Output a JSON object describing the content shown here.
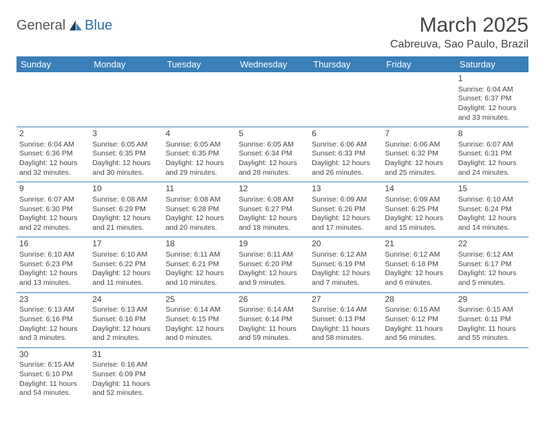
{
  "logo": {
    "general": "General",
    "blue": "Blue"
  },
  "title": "March 2025",
  "location": "Cabreuva, Sao Paulo, Brazil",
  "colors": {
    "header_bg": "#3a7fb8",
    "header_text": "#ffffff",
    "border": "#3a7fb8",
    "text": "#444444",
    "logo_gray": "#555555",
    "logo_blue": "#2f6fa7"
  },
  "weekdays": [
    "Sunday",
    "Monday",
    "Tuesday",
    "Wednesday",
    "Thursday",
    "Friday",
    "Saturday"
  ],
  "weeks": [
    [
      null,
      null,
      null,
      null,
      null,
      null,
      {
        "n": "1",
        "sunrise": "Sunrise: 6:04 AM",
        "sunset": "Sunset: 6:37 PM",
        "day1": "Daylight: 12 hours",
        "day2": "and 33 minutes."
      }
    ],
    [
      {
        "n": "2",
        "sunrise": "Sunrise: 6:04 AM",
        "sunset": "Sunset: 6:36 PM",
        "day1": "Daylight: 12 hours",
        "day2": "and 32 minutes."
      },
      {
        "n": "3",
        "sunrise": "Sunrise: 6:05 AM",
        "sunset": "Sunset: 6:35 PM",
        "day1": "Daylight: 12 hours",
        "day2": "and 30 minutes."
      },
      {
        "n": "4",
        "sunrise": "Sunrise: 6:05 AM",
        "sunset": "Sunset: 6:35 PM",
        "day1": "Daylight: 12 hours",
        "day2": "and 29 minutes."
      },
      {
        "n": "5",
        "sunrise": "Sunrise: 6:05 AM",
        "sunset": "Sunset: 6:34 PM",
        "day1": "Daylight: 12 hours",
        "day2": "and 28 minutes."
      },
      {
        "n": "6",
        "sunrise": "Sunrise: 6:06 AM",
        "sunset": "Sunset: 6:33 PM",
        "day1": "Daylight: 12 hours",
        "day2": "and 26 minutes."
      },
      {
        "n": "7",
        "sunrise": "Sunrise: 6:06 AM",
        "sunset": "Sunset: 6:32 PM",
        "day1": "Daylight: 12 hours",
        "day2": "and 25 minutes."
      },
      {
        "n": "8",
        "sunrise": "Sunrise: 6:07 AM",
        "sunset": "Sunset: 6:31 PM",
        "day1": "Daylight: 12 hours",
        "day2": "and 24 minutes."
      }
    ],
    [
      {
        "n": "9",
        "sunrise": "Sunrise: 6:07 AM",
        "sunset": "Sunset: 6:30 PM",
        "day1": "Daylight: 12 hours",
        "day2": "and 22 minutes."
      },
      {
        "n": "10",
        "sunrise": "Sunrise: 6:08 AM",
        "sunset": "Sunset: 6:29 PM",
        "day1": "Daylight: 12 hours",
        "day2": "and 21 minutes."
      },
      {
        "n": "11",
        "sunrise": "Sunrise: 6:08 AM",
        "sunset": "Sunset: 6:28 PM",
        "day1": "Daylight: 12 hours",
        "day2": "and 20 minutes."
      },
      {
        "n": "12",
        "sunrise": "Sunrise: 6:08 AM",
        "sunset": "Sunset: 6:27 PM",
        "day1": "Daylight: 12 hours",
        "day2": "and 18 minutes."
      },
      {
        "n": "13",
        "sunrise": "Sunrise: 6:09 AM",
        "sunset": "Sunset: 6:26 PM",
        "day1": "Daylight: 12 hours",
        "day2": "and 17 minutes."
      },
      {
        "n": "14",
        "sunrise": "Sunrise: 6:09 AM",
        "sunset": "Sunset: 6:25 PM",
        "day1": "Daylight: 12 hours",
        "day2": "and 15 minutes."
      },
      {
        "n": "15",
        "sunrise": "Sunrise: 6:10 AM",
        "sunset": "Sunset: 6:24 PM",
        "day1": "Daylight: 12 hours",
        "day2": "and 14 minutes."
      }
    ],
    [
      {
        "n": "16",
        "sunrise": "Sunrise: 6:10 AM",
        "sunset": "Sunset: 6:23 PM",
        "day1": "Daylight: 12 hours",
        "day2": "and 13 minutes."
      },
      {
        "n": "17",
        "sunrise": "Sunrise: 6:10 AM",
        "sunset": "Sunset: 6:22 PM",
        "day1": "Daylight: 12 hours",
        "day2": "and 11 minutes."
      },
      {
        "n": "18",
        "sunrise": "Sunrise: 6:11 AM",
        "sunset": "Sunset: 6:21 PM",
        "day1": "Daylight: 12 hours",
        "day2": "and 10 minutes."
      },
      {
        "n": "19",
        "sunrise": "Sunrise: 6:11 AM",
        "sunset": "Sunset: 6:20 PM",
        "day1": "Daylight: 12 hours",
        "day2": "and 9 minutes."
      },
      {
        "n": "20",
        "sunrise": "Sunrise: 6:12 AM",
        "sunset": "Sunset: 6:19 PM",
        "day1": "Daylight: 12 hours",
        "day2": "and 7 minutes."
      },
      {
        "n": "21",
        "sunrise": "Sunrise: 6:12 AM",
        "sunset": "Sunset: 6:18 PM",
        "day1": "Daylight: 12 hours",
        "day2": "and 6 minutes."
      },
      {
        "n": "22",
        "sunrise": "Sunrise: 6:12 AM",
        "sunset": "Sunset: 6:17 PM",
        "day1": "Daylight: 12 hours",
        "day2": "and 5 minutes."
      }
    ],
    [
      {
        "n": "23",
        "sunrise": "Sunrise: 6:13 AM",
        "sunset": "Sunset: 6:16 PM",
        "day1": "Daylight: 12 hours",
        "day2": "and 3 minutes."
      },
      {
        "n": "24",
        "sunrise": "Sunrise: 6:13 AM",
        "sunset": "Sunset: 6:16 PM",
        "day1": "Daylight: 12 hours",
        "day2": "and 2 minutes."
      },
      {
        "n": "25",
        "sunrise": "Sunrise: 6:14 AM",
        "sunset": "Sunset: 6:15 PM",
        "day1": "Daylight: 12 hours",
        "day2": "and 0 minutes."
      },
      {
        "n": "26",
        "sunrise": "Sunrise: 6:14 AM",
        "sunset": "Sunset: 6:14 PM",
        "day1": "Daylight: 11 hours",
        "day2": "and 59 minutes."
      },
      {
        "n": "27",
        "sunrise": "Sunrise: 6:14 AM",
        "sunset": "Sunset: 6:13 PM",
        "day1": "Daylight: 11 hours",
        "day2": "and 58 minutes."
      },
      {
        "n": "28",
        "sunrise": "Sunrise: 6:15 AM",
        "sunset": "Sunset: 6:12 PM",
        "day1": "Daylight: 11 hours",
        "day2": "and 56 minutes."
      },
      {
        "n": "29",
        "sunrise": "Sunrise: 6:15 AM",
        "sunset": "Sunset: 6:11 PM",
        "day1": "Daylight: 11 hours",
        "day2": "and 55 minutes."
      }
    ],
    [
      {
        "n": "30",
        "sunrise": "Sunrise: 6:15 AM",
        "sunset": "Sunset: 6:10 PM",
        "day1": "Daylight: 11 hours",
        "day2": "and 54 minutes."
      },
      {
        "n": "31",
        "sunrise": "Sunrise: 6:16 AM",
        "sunset": "Sunset: 6:09 PM",
        "day1": "Daylight: 11 hours",
        "day2": "and 52 minutes."
      },
      null,
      null,
      null,
      null,
      null
    ]
  ]
}
